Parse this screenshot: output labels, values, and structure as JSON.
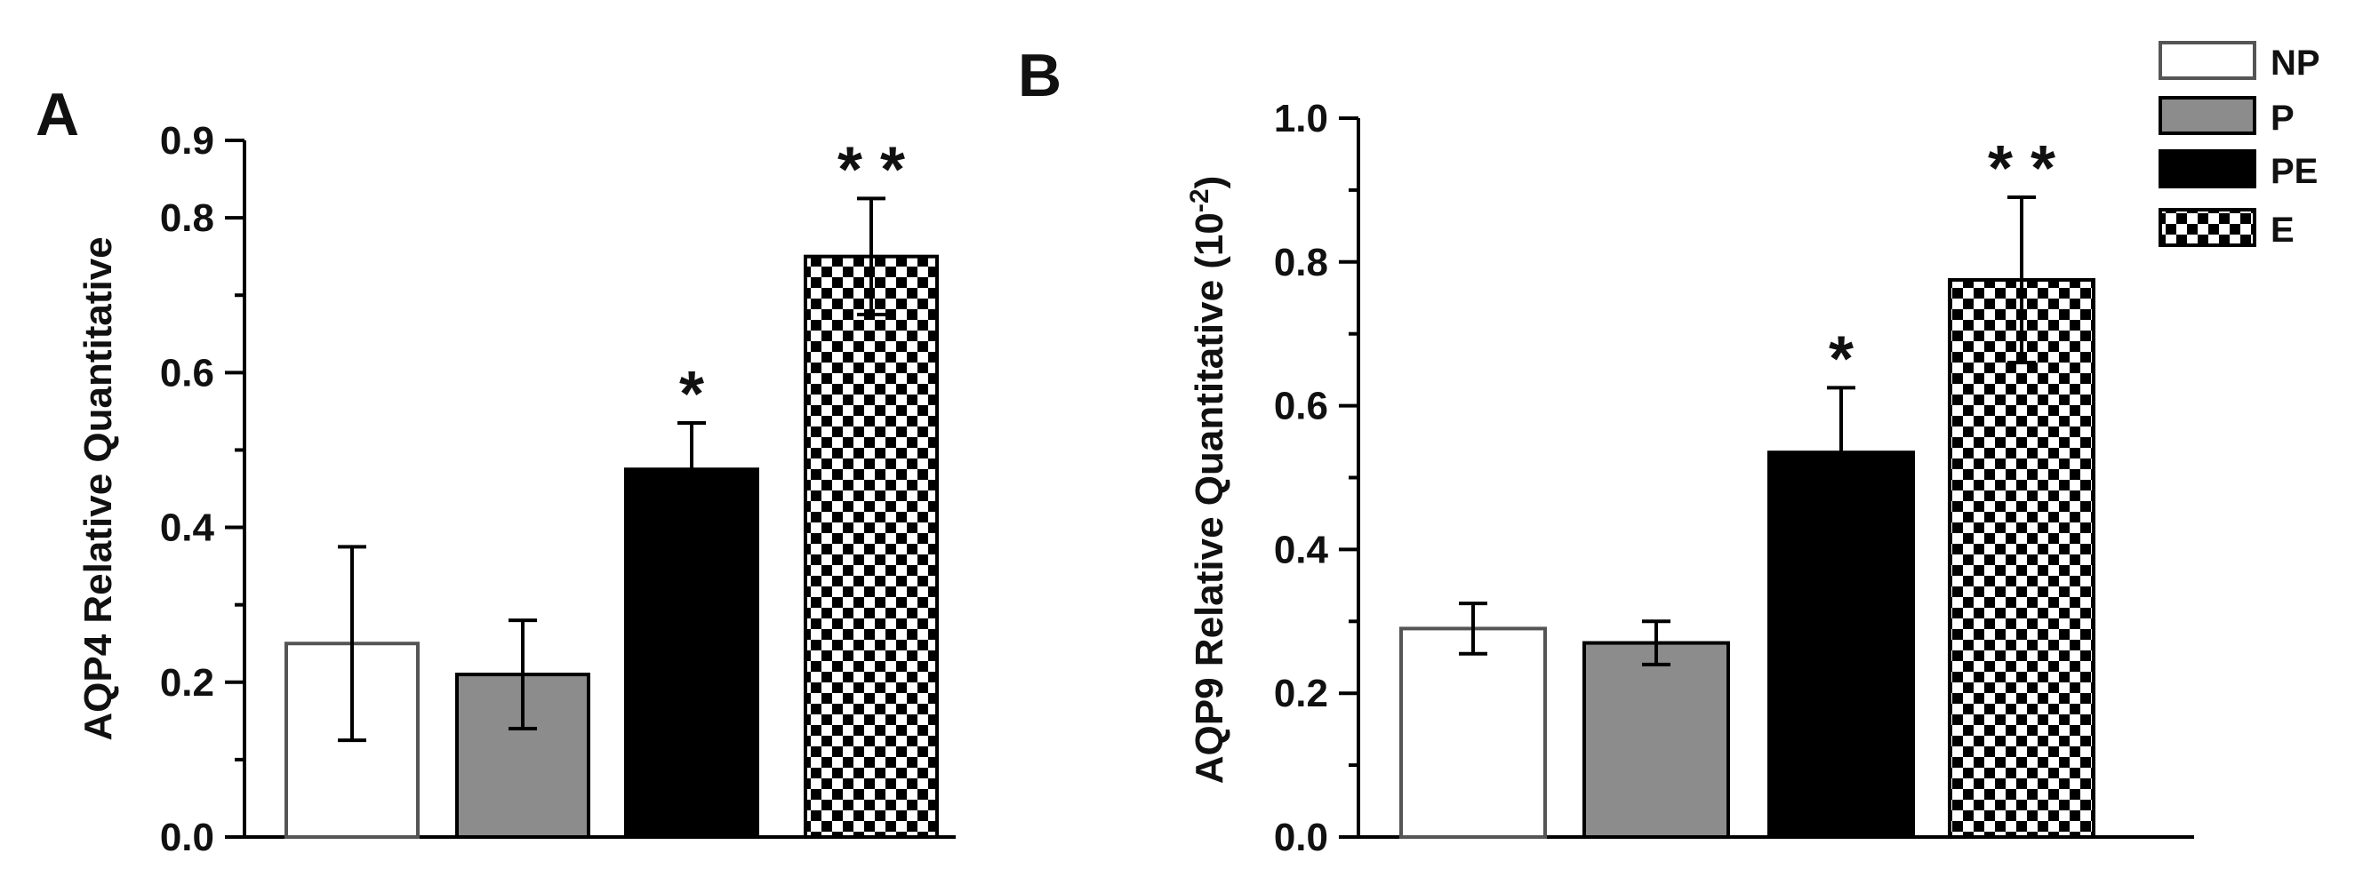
{
  "colors": {
    "NP": "#ffffff",
    "P": "#8c8c8c",
    "PE": "#000000",
    "E": "checker"
  },
  "legend": {
    "items": [
      {
        "label": "NP",
        "key": "NP"
      },
      {
        "label": "P",
        "key": "P"
      },
      {
        "label": "PE",
        "key": "PE"
      },
      {
        "label": "E",
        "key": "E"
      }
    ]
  },
  "chart_data": [
    {
      "type": "bar",
      "panel": "A",
      "categories": [
        "NP",
        "P",
        "PE",
        "E"
      ],
      "values": [
        0.25,
        0.21,
        0.475,
        0.75
      ],
      "errors": [
        0.125,
        0.07,
        0.06,
        0.075
      ],
      "significance": [
        "",
        "",
        "*",
        "* *"
      ],
      "ylabel": "AQP4 Relative Quantitative",
      "xlabel": "",
      "ylim": [
        0,
        0.9
      ],
      "yticks": [
        0.0,
        0.2,
        0.4,
        0.6,
        0.8,
        0.9
      ],
      "ytick_labels": [
        "0.0",
        "0.2",
        "0.4",
        "0.6",
        "0.8",
        "0.9"
      ],
      "minor_ticks": [
        0.1,
        0.3,
        0.5,
        0.7
      ]
    },
    {
      "type": "bar",
      "panel": "B",
      "categories": [
        "NP",
        "P",
        "PE",
        "E"
      ],
      "values": [
        0.29,
        0.27,
        0.535,
        0.775
      ],
      "errors": [
        0.035,
        0.03,
        0.09,
        0.115
      ],
      "significance": [
        "",
        "",
        "*",
        "* *"
      ],
      "ylabel": "AQP9 Relative Quantitative (10",
      "ylabel_superscript": "-2",
      "ylabel_close": ")",
      "xlabel": "",
      "ylim": [
        0,
        1.0
      ],
      "yticks": [
        0.0,
        0.2,
        0.4,
        0.6,
        0.8,
        1.0
      ],
      "ytick_labels": [
        "0.0",
        "0.2",
        "0.4",
        "0.6",
        "0.8",
        "1.0"
      ],
      "minor_ticks": [
        0.1,
        0.3,
        0.5,
        0.7,
        0.9
      ]
    }
  ]
}
